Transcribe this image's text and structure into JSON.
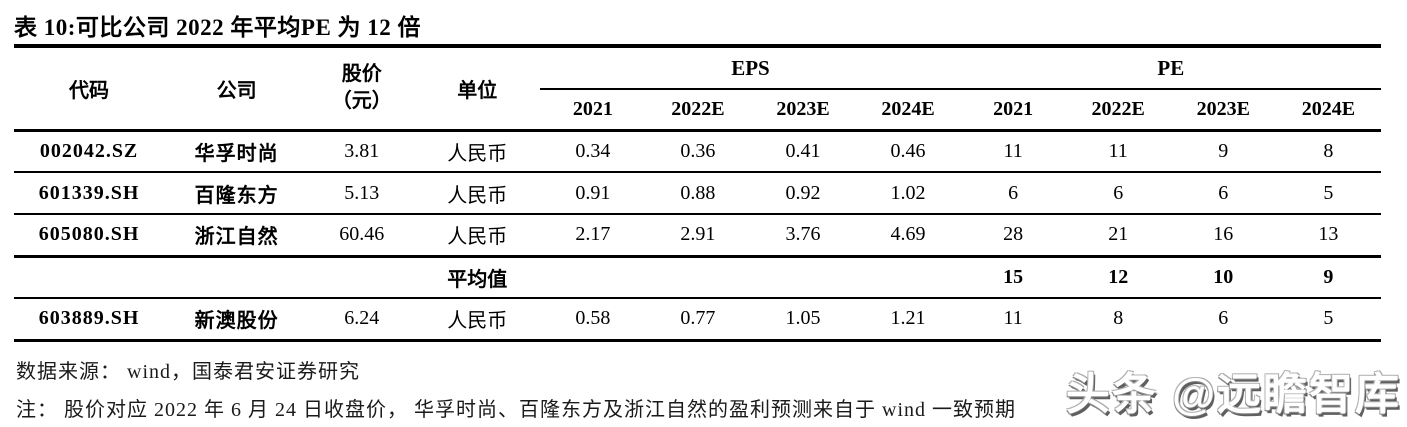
{
  "title": "表 10:可比公司 2022 年平均PE 为 12 倍",
  "table": {
    "col_headers": {
      "code": "代码",
      "company": "公司",
      "price_line1": "股价",
      "price_line2": "（元）",
      "unit": "单位",
      "eps_group": "EPS",
      "pe_group": "PE",
      "year_cols": [
        "2021",
        "2022E",
        "2023E",
        "2024E",
        "2021",
        "2022E",
        "2023E",
        "2024E"
      ]
    },
    "rows": [
      {
        "code": "002042.SZ",
        "company": "华孚时尚",
        "price": "3.81",
        "unit": "人民币",
        "values": [
          "0.34",
          "0.36",
          "0.41",
          "0.46",
          "11",
          "11",
          "9",
          "8"
        ],
        "emphasis": false
      },
      {
        "code": "601339.SH",
        "company": "百隆东方",
        "price": "5.13",
        "unit": "人民币",
        "values": [
          "0.91",
          "0.88",
          "0.92",
          "1.02",
          "6",
          "6",
          "6",
          "5"
        ],
        "emphasis": false
      },
      {
        "code": "605080.SH",
        "company": "浙江自然",
        "price": "60.46",
        "unit": "人民币",
        "values": [
          "2.17",
          "2.91",
          "3.76",
          "4.69",
          "28",
          "21",
          "16",
          "13"
        ],
        "emphasis": false
      },
      {
        "code": "",
        "company": "",
        "price": "",
        "unit": "平均值",
        "values": [
          "",
          "",
          "",
          "",
          "15",
          "12",
          "10",
          "9"
        ],
        "emphasis": true
      },
      {
        "code": "603889.SH",
        "company": "新澳股份",
        "price": "6.24",
        "unit": "人民币",
        "values": [
          "0.58",
          "0.77",
          "1.05",
          "1.21",
          "11",
          "8",
          "6",
          "5"
        ],
        "emphasis": false
      }
    ]
  },
  "footer": {
    "source": "数据来源： wind，国泰君安证券研究",
    "note": "注： 股价对应 2022 年 6 月 24 日收盘价， 华孚时尚、百隆东方及浙江自然的盈利预测来自于 wind 一致预期"
  },
  "watermark": "头条 @远瞻智库",
  "colors": {
    "text": "#000000",
    "background": "#ffffff",
    "rule": "#000000"
  }
}
